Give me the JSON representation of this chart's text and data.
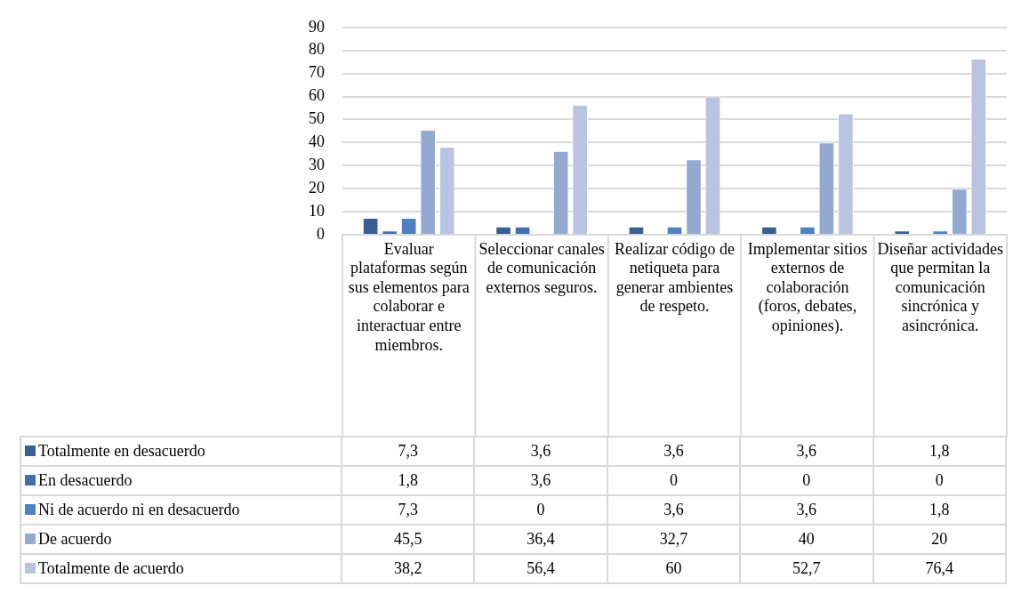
{
  "chart_data": {
    "type": "bar",
    "categories": [
      "Evaluar plataformas según sus elementos para colaborar e interactuar entre miembros.",
      "Seleccionar canales de comunicación externos seguros.",
      "Realizar código de netiqueta para generar ambientes de respeto.",
      "Implementar sitios externos de colaboración (foros, debates, opiniones).",
      "Diseñar actividades que permitan la comunicación sincrónica y asincrónica."
    ],
    "series": [
      {
        "name": "Totalmente en desacuerdo",
        "color": "#3a5f8f",
        "values": [
          7.3,
          3.6,
          3.6,
          3.6,
          1.8
        ],
        "value_labels": [
          "7,3",
          "3,6",
          "3,6",
          "3,6",
          "1,8"
        ]
      },
      {
        "name": "En desacuerdo",
        "color": "#4370a8",
        "values": [
          1.8,
          3.6,
          0,
          0,
          0
        ],
        "value_labels": [
          "1,8",
          "3,6",
          "0",
          "0",
          "0"
        ]
      },
      {
        "name": "Ni de acuerdo ni en desacuerdo",
        "color": "#4f81bd",
        "values": [
          7.3,
          0,
          3.6,
          3.6,
          1.8
        ],
        "value_labels": [
          "7,3",
          "0",
          "3,6",
          "3,6",
          "1,8"
        ]
      },
      {
        "name": "De acuerdo",
        "color": "#95a9d0",
        "values": [
          45.5,
          36.4,
          32.7,
          40,
          20
        ],
        "value_labels": [
          "45,5",
          "36,4",
          "32,7",
          "40",
          "20"
        ]
      },
      {
        "name": "Totalmente de acuerdo",
        "color": "#b9c5e0",
        "values": [
          38.2,
          56.4,
          60,
          52.7,
          76.4
        ],
        "value_labels": [
          "38,2",
          "56,4",
          "60",
          "52,7",
          "76,4"
        ]
      }
    ],
    "ylim": [
      0,
      90
    ],
    "yticks": [
      0,
      10,
      20,
      30,
      40,
      50,
      60,
      70,
      80,
      90
    ],
    "grid": "y",
    "legend": "bottom"
  }
}
